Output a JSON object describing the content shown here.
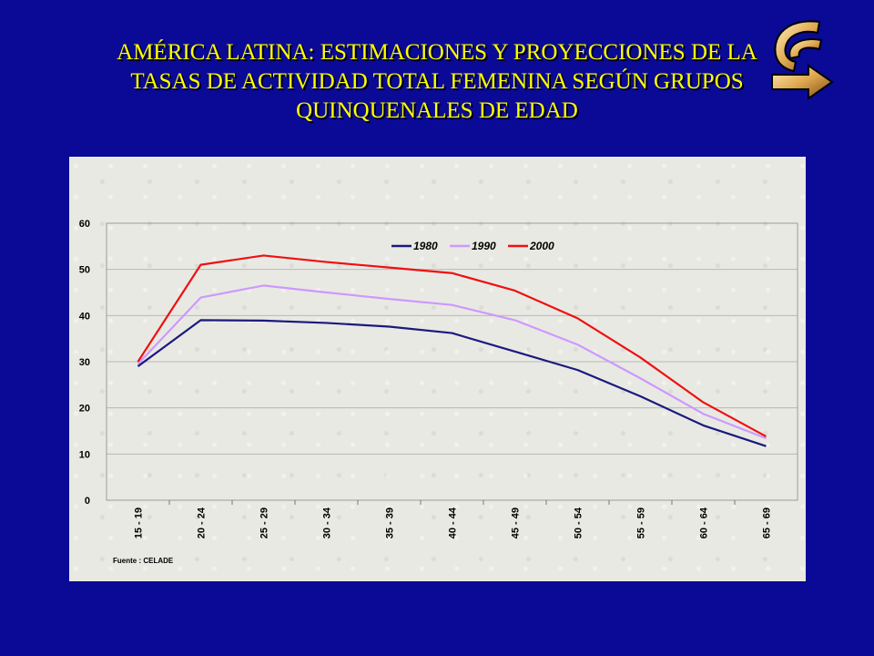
{
  "slide": {
    "title_lines": [
      "AMÉRICA LATINA: ESTIMACIONES Y PROYECCIONES DE LA",
      "TASAS DE ACTIVIDAD TOTAL FEMENINA SEGÚN GRUPOS",
      "QUINQUENALES DE EDAD"
    ],
    "logo_icon": "curved-arrow-logo-icon",
    "background_color": "#0a0a96",
    "title_color": "#ffff00"
  },
  "chart_data": {
    "type": "line",
    "categories": [
      "15 - 19",
      "20 - 24",
      "25 - 29",
      "30 - 34",
      "35 - 39",
      "40 - 44",
      "45 - 49",
      "50 - 54",
      "55 - 59",
      "60 - 64",
      "65 - 69"
    ],
    "series": [
      {
        "name": "1980",
        "color": "#1a1a7e",
        "values": [
          29,
          39,
          38.9,
          38.4,
          37.6,
          36.2,
          32.2,
          28.2,
          22.5,
          16.2,
          11.7
        ]
      },
      {
        "name": "1990",
        "color": "#cc99ff",
        "values": [
          29.5,
          43.9,
          46.5,
          45,
          43.6,
          42.3,
          39,
          33.7,
          26.4,
          18.7,
          13.4
        ]
      },
      {
        "name": "2000",
        "color": "#ee1111",
        "values": [
          30,
          51,
          53,
          51.6,
          50.4,
          49.2,
          45.4,
          39.4,
          30.9,
          21.2,
          13.8
        ]
      }
    ],
    "ylim": [
      0,
      60
    ],
    "yticks": [
      "0",
      "10",
      "20",
      "30",
      "40",
      "50",
      "60"
    ],
    "grid": true,
    "legend_position": "top",
    "source": "Fuente : CELADE"
  }
}
